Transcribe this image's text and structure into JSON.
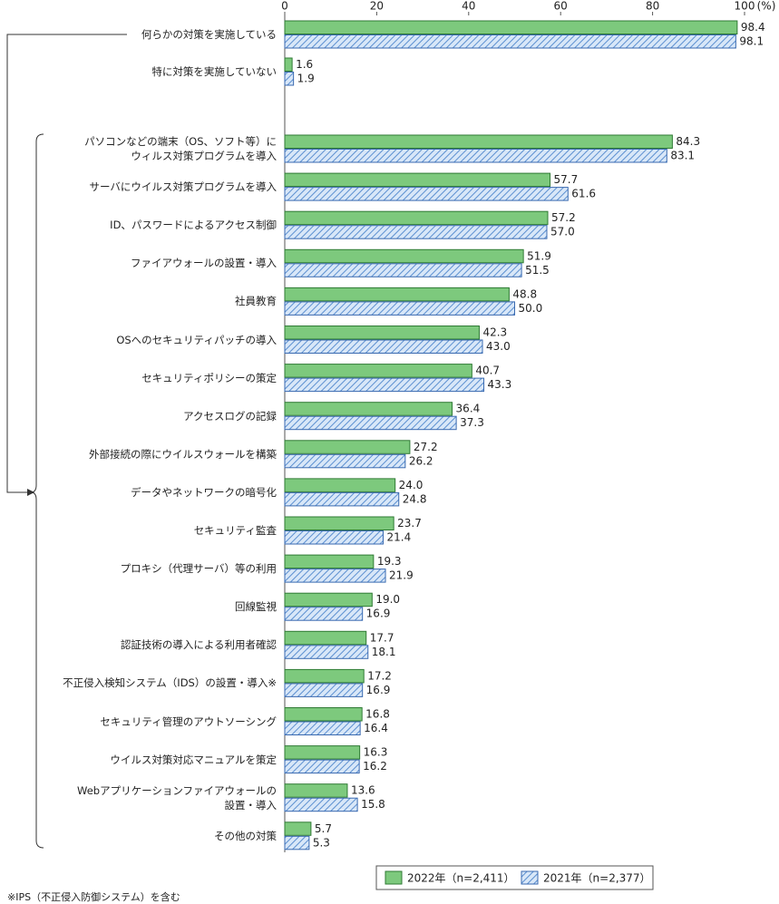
{
  "chart_data": {
    "type": "hbar",
    "unit_label": "(%)",
    "categories": [
      "何らかの対策を実施している",
      "特に対策を実施していない",
      "パソコンなどの端末（OS、ソフト等）に\nウィルス対策プログラムを導入",
      "サーバにウイルス対策プログラムを導入",
      "ID、パスワードによるアクセス制御",
      "ファイアウォールの設置・導入",
      "社員教育",
      "OSへのセキュリティパッチの導入",
      "セキュリティポリシーの策定",
      "アクセスログの記録",
      "外部接続の際にウイルスウォールを構築",
      "データやネットワークの暗号化",
      "セキュリティ監査",
      "プロキシ（代理サーバ）等の利用",
      "回線監視",
      "認証技術の導入による利用者確認",
      "不正侵入検知システム（IDS）の設置・導入※",
      "セキュリティ管理のアウトソーシング",
      "ウイルス対策対応マニュアルを策定",
      "Webアプリケーションファイアウォールの\n設置・導入",
      "その他の対策"
    ],
    "series": [
      {
        "name": "2022年（n=2,411）",
        "color": "#7dc97d",
        "values": [
          98.4,
          1.6,
          84.3,
          57.7,
          57.2,
          51.9,
          48.8,
          42.3,
          40.7,
          36.4,
          27.2,
          24,
          23.7,
          19.3,
          19,
          17.7,
          17.2,
          16.8,
          16.3,
          13.6,
          5.7
        ],
        "value_labels": [
          "98.4",
          "1.6",
          "84.3",
          "57.7",
          "57.2",
          "51.9",
          "48.8",
          "42.3",
          "40.7",
          "36.4",
          "27.2",
          "24.0",
          "23.7",
          "19.3",
          "19.0",
          "17.7",
          "17.2",
          "16.8",
          "16.3",
          "13.6",
          "5.7"
        ]
      },
      {
        "name": "2021年（n=2,377）",
        "color": "#a9c8ec",
        "values": [
          98.1,
          1.9,
          83.1,
          61.6,
          57,
          51.5,
          50,
          43,
          43.3,
          37.3,
          26.2,
          24.8,
          21.4,
          21.9,
          16.9,
          18.1,
          16.9,
          16.4,
          16.2,
          15.8,
          5.3
        ],
        "value_labels": [
          "98.1",
          "1.9",
          "83.1",
          "61.6",
          "57.0",
          "51.5",
          "50.0",
          "43.0",
          "43.3",
          "37.3",
          "26.2",
          "24.8",
          "21.4",
          "21.9",
          "16.9",
          "18.1",
          "16.9",
          "16.4",
          "16.2",
          "15.8",
          "5.3"
        ]
      }
    ],
    "xlim": [
      0,
      100
    ],
    "xticks": [
      0,
      20,
      40,
      60,
      80,
      100
    ],
    "grid": false,
    "footnote": "※IPS（不正侵入防御システム）を含む"
  }
}
